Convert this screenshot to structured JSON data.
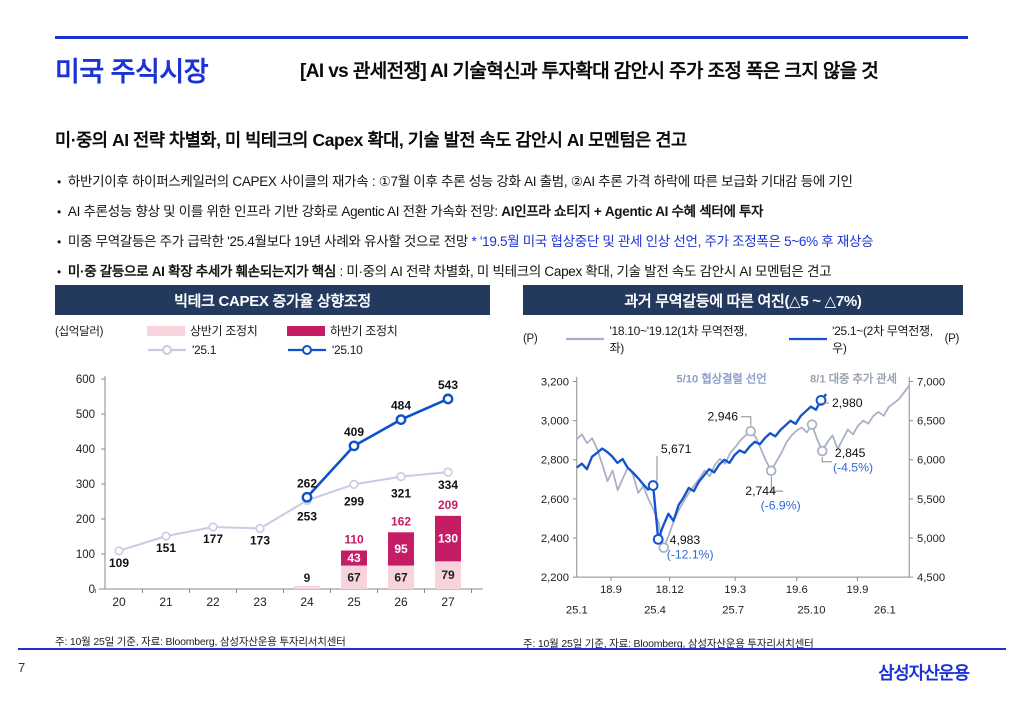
{
  "header": {
    "title": "미국 주식시장",
    "headline": "[AI vs 관세전쟁] AI 기술혁신과 투자확대 감안시 주가 조정 폭은 크지 않을 것",
    "subtitle": "미·중의 AI 전략 차별화, 미 빅테크의 Capex 확대, 기술 발전 속도 감안시 AI 모멘텀은 견고"
  },
  "bullets": [
    {
      "segments": [
        {
          "text": "하반기이후 하이퍼스케일러의 CAPEX 사이클의 재가속 : ①7월 이후 추론 성능 강화 AI 출범, ②AI 추론 가격 하락에 따른 보급화 기대감 등에 기인",
          "style": "normal"
        }
      ]
    },
    {
      "segments": [
        {
          "text": "AI 추론성능 향상 및 이를 위한 인프라 기반 강화로 Agentic AI 전환 가속화 전망: ",
          "style": "normal"
        },
        {
          "text": "AI인프라 쇼티지 + Agentic AI 수혜 섹터에 투자",
          "style": "bold"
        }
      ]
    },
    {
      "segments": [
        {
          "text": "미중 무역갈등은 주가 급락한 '25.4월보다 19년 사례와 유사할 것으로 전망 ",
          "style": "normal"
        },
        {
          "text": "* '19.5월 미국 협상중단 및 관세 인상 선언, 주가 조정폭은 5~6% 후 재상승",
          "style": "blue"
        }
      ]
    },
    {
      "segments": [
        {
          "text": "미·중 갈등으로 AI 확장 추세가 훼손되는지가 핵심",
          "style": "bold"
        },
        {
          "text": " : 미·중의 AI 전략 차별화, 미 빅테크의 Capex 확대, 기술 발전 속도 감안시 AI 모멘텀은 견고",
          "style": "normal"
        }
      ]
    }
  ],
  "left_chart": {
    "title": "빅테크 CAPEX 증가율 상향조정",
    "unit": "(십억달러)",
    "legend": [
      {
        "swatch": "bar",
        "color": "pink",
        "label": "상반기 조정치"
      },
      {
        "swatch": "bar",
        "color": "magenta",
        "label": "하반기 조정치"
      },
      {
        "swatch": "line",
        "color": "gray",
        "label": "'25.1"
      },
      {
        "swatch": "line",
        "color": "blue",
        "label": "'25.10"
      }
    ],
    "note": "주: 10월 25일 기준, 자료: Bloomberg, 삼성자산운용 투자리서치센터"
  },
  "right_chart": {
    "title": "과거 무역갈등에 따른 여진(△5 ~ △7%)",
    "unit_left": "(P)",
    "unit_right": "(P)",
    "legend": [
      {
        "swatch": "line",
        "color": "gray2",
        "label": "'18.10~'19.12(1차 무역전쟁,좌)"
      },
      {
        "swatch": "line",
        "color": "blue2",
        "label": "'25.1~(2차 무역전쟁,우)"
      }
    ],
    "note": "주: 10월 25일 기준, 자료: Bloomberg, 삼성자산운용 투자리서치센터"
  },
  "footer": {
    "page_number": "7",
    "logo": "삼성자산운용"
  },
  "colors": {
    "brand": "#1c33d4",
    "navy": "#24395e",
    "magenta": "#c41d66",
    "pink": "#f7d3dc",
    "lavender": "#c7cce2",
    "blue_line": "#0d52c9",
    "gray_line2": "#a8b0c6",
    "blue_line2": "#1553ce",
    "callout_blue": "#2e6bd4",
    "event_blue": "#8fa0ca",
    "event_gray": "#9aa2b2",
    "axis": "#8a8a8a"
  },
  "chart_data": [
    {
      "type": "bar+line",
      "title": "빅테크 CAPEX 증가율 상향조정",
      "ylabel": "(십억달러)",
      "categories": [
        "20",
        "21",
        "22",
        "23",
        "24",
        "25",
        "26",
        "27"
      ],
      "series": [
        {
          "name": "상반기 조정치",
          "type": "bar",
          "values": [
            null,
            null,
            null,
            null,
            9,
            67,
            67,
            79
          ]
        },
        {
          "name": "하반기 조정치",
          "type": "bar",
          "values": [
            null,
            null,
            null,
            null,
            null,
            43,
            95,
            130
          ]
        },
        {
          "name": "'25.1",
          "type": "line",
          "values": [
            109,
            151,
            177,
            173,
            253,
            299,
            321,
            334
          ]
        },
        {
          "name": "'25.10",
          "type": "line",
          "values": [
            null,
            null,
            null,
            null,
            262,
            409,
            484,
            543
          ]
        }
      ],
      "bar_totals": [
        null,
        null,
        null,
        null,
        "9",
        "110",
        "162",
        "209"
      ],
      "ylim": [
        0,
        600
      ],
      "yticks": [
        0,
        100,
        200,
        300,
        400,
        500,
        600
      ],
      "grid": false,
      "legend_position": "top"
    },
    {
      "type": "line",
      "title": "과거 무역갈등에 따른 여진(△5 ~ △7%)",
      "ylabel_left": "(P)",
      "ylabel_right": "(P)",
      "series": [
        {
          "name": "'18.10~'19.12(1차 무역전쟁,좌)",
          "axis": "left",
          "values": [
            2905,
            2930,
            2885,
            2910,
            2855,
            2775,
            2690,
            2745,
            2645,
            2705,
            2760,
            2725,
            2630,
            2665,
            2600,
            2545,
            2480,
            2351,
            2416,
            2490,
            2545,
            2590,
            2635,
            2670,
            2705,
            2745,
            2715,
            2775,
            2805,
            2780,
            2835,
            2865,
            2900,
            2925,
            2946,
            2915,
            2855,
            2795,
            2744,
            2790,
            2835,
            2890,
            2925,
            2950,
            2965,
            2940,
            2980,
            2905,
            2845,
            2890,
            2925,
            2855,
            2905,
            2955,
            2930,
            2975,
            3000,
            2985,
            3025,
            3045,
            3025,
            3070,
            3090,
            3110,
            3145,
            3180
          ]
        },
        {
          "name": "'25.1~(2차 무역전쟁,우)",
          "axis": "right",
          "values": [
            5900,
            5950,
            5880,
            6040,
            6090,
            6144,
            6100,
            6040,
            5960,
            6010,
            5900,
            5840,
            5770,
            5690,
            5620,
            5671,
            4983,
            5160,
            5310,
            5220,
            5420,
            5520,
            5640,
            5600,
            5720,
            5800,
            5880,
            5840,
            5940,
            6000,
            5960,
            6060,
            6120,
            6090,
            6170,
            6230,
            6200,
            6280,
            6340,
            6300,
            6380,
            6440,
            6500,
            6460,
            6560,
            6620,
            6680,
            6640,
            6760,
            6840
          ]
        }
      ],
      "ylim_left": [
        2200,
        3200
      ],
      "yticks_left": [
        "3,200",
        "3,000",
        "2,800",
        "2,600",
        "2,400",
        "2,200"
      ],
      "ylim_right": [
        4500,
        7000
      ],
      "yticks_right": [
        "7,000",
        "6,500",
        "6,000",
        "5,500",
        "5,000",
        "4,500"
      ],
      "xticks_row1": [
        "18.9",
        "18.12",
        "19.3",
        "19.6",
        "19.9"
      ],
      "xticks_row2": [
        "25.1",
        "25.4",
        "25.7",
        "25.10",
        "26.1"
      ],
      "events": [
        {
          "text": "5/10 협상결렬 선언",
          "color": "event_blue"
        },
        {
          "text": "8/1 대중 추가 관세",
          "color": "event_gray"
        }
      ],
      "callouts": [
        {
          "value": "5,671",
          "pct": "",
          "series": "blue",
          "index": 15
        },
        {
          "value": "4,983",
          "pct": "(-12.1%)",
          "series": "blue",
          "index": 16
        },
        {
          "value": "2,946",
          "pct": "",
          "series": "gray",
          "index": 34
        },
        {
          "value": "2,744",
          "pct": "(-6.9%)",
          "series": "gray",
          "index": 38
        },
        {
          "value": "2,980",
          "pct": "",
          "series": "gray",
          "index": 46
        },
        {
          "value": "2,845",
          "pct": "(-4.5%)",
          "series": "gray",
          "index": 48
        }
      ],
      "markers": {
        "gray": [
          17,
          34,
          38,
          46,
          48
        ],
        "blue": [
          15,
          16,
          48
        ]
      },
      "grid": false,
      "legend_position": "top"
    }
  ]
}
